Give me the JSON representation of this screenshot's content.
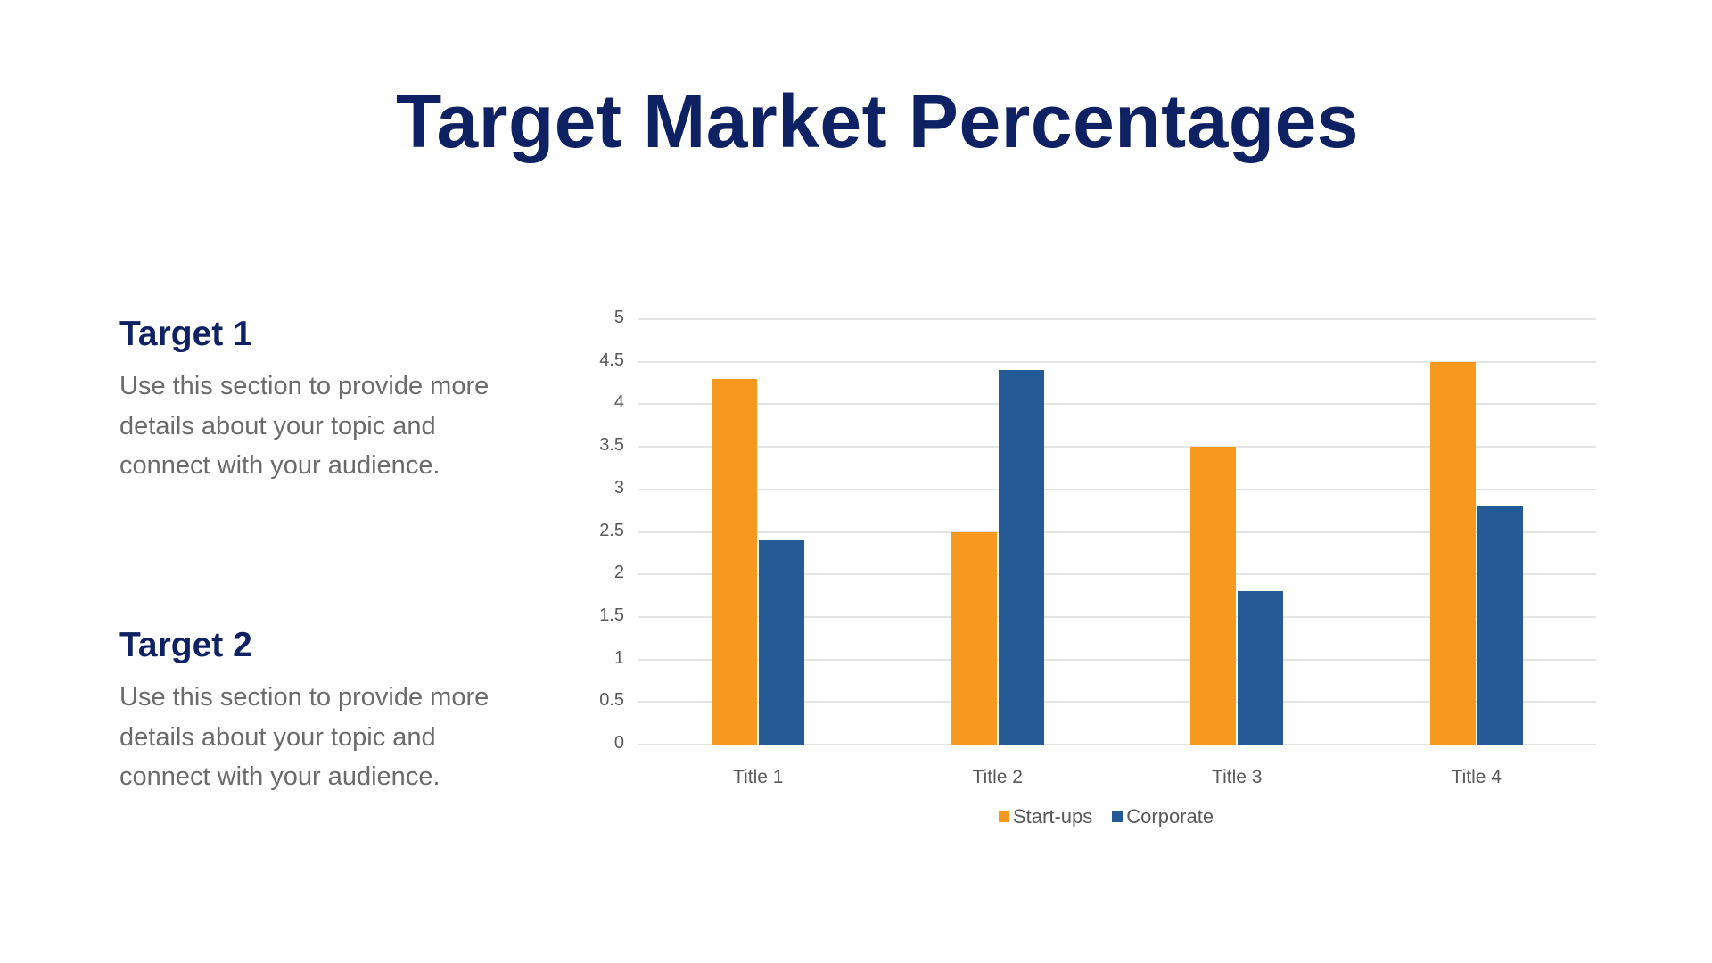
{
  "slide": {
    "title": "Target Market Percentages",
    "targets": [
      {
        "heading": "Target 1",
        "body": "Use this section to provide more details about your topic and connect with your audience."
      },
      {
        "heading": "Target 2",
        "body": "Use this section to provide more details about your topic and connect with your audience."
      }
    ]
  },
  "colors": {
    "title": "#0d2163",
    "startups": "#f7991f",
    "corporate": "#255a96",
    "grid": "#e4e4e4",
    "axis_text": "#595959",
    "body_text": "#6b6b6b"
  },
  "chart_data": {
    "type": "bar",
    "title": "",
    "categories": [
      "Title 1",
      "Title 2",
      "Title 3",
      "Title 4"
    ],
    "series": [
      {
        "name": "Start-ups",
        "color": "#f7991f",
        "values": [
          4.3,
          2.5,
          3.5,
          4.5
        ]
      },
      {
        "name": "Corporate",
        "color": "#255a96",
        "values": [
          2.4,
          4.4,
          1.8,
          2.8
        ]
      }
    ],
    "yticks": [
      "0",
      "0.5",
      "1",
      "1.5",
      "2",
      "2.5",
      "3",
      "3.5",
      "4",
      "4.5",
      "5"
    ],
    "ylim": [
      0,
      5
    ],
    "xlabel": "",
    "ylabel": "",
    "grid": true,
    "legend_position": "bottom"
  }
}
